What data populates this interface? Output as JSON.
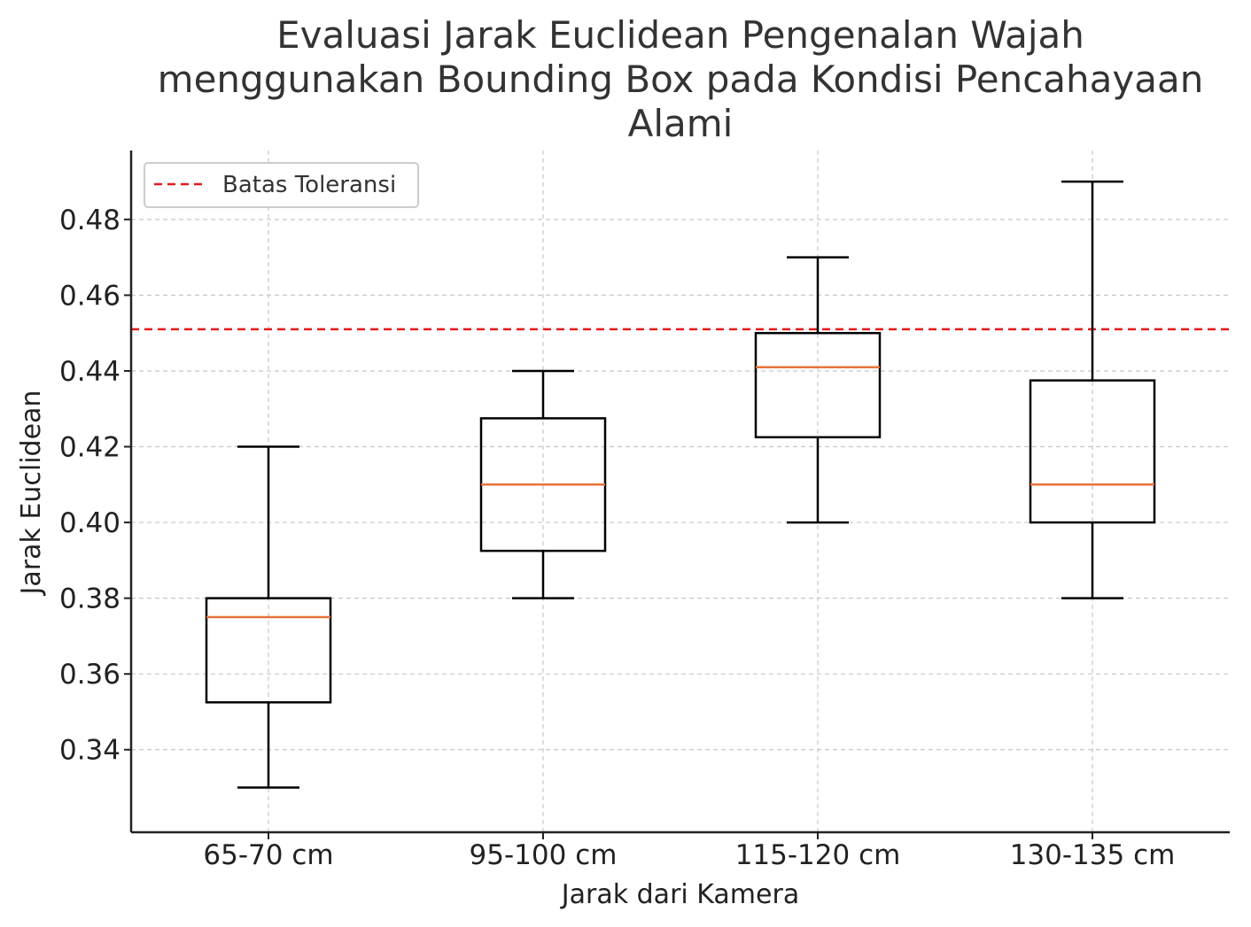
{
  "chart_data": {
    "type": "box",
    "title_lines": [
      "Evaluasi Jarak Euclidean Pengenalan Wajah",
      "menggunakan Bounding Box pada Kondisi Pencahayaan",
      "Alami"
    ],
    "xlabel": "Jarak dari Kamera",
    "ylabel": "Jarak Euclidean",
    "categories": [
      "65-70 cm",
      "95-100 cm",
      "115-120 cm",
      "130-135 cm"
    ],
    "boxes": [
      {
        "whisker_low": 0.33,
        "q1": 0.3525,
        "median": 0.375,
        "q3": 0.38,
        "whisker_high": 0.42
      },
      {
        "whisker_low": 0.38,
        "q1": 0.3925,
        "median": 0.41,
        "q3": 0.4275,
        "whisker_high": 0.44
      },
      {
        "whisker_low": 0.4,
        "q1": 0.4225,
        "median": 0.441,
        "q3": 0.45,
        "whisker_high": 0.47
      },
      {
        "whisker_low": 0.38,
        "q1": 0.4,
        "median": 0.41,
        "q3": 0.4375,
        "whisker_high": 0.49
      }
    ],
    "reference_line": {
      "label": "Batas Toleransi",
      "value": 0.451,
      "color": "#e31a1c",
      "style": "dashed"
    },
    "yticks": [
      0.34,
      0.36,
      0.38,
      0.4,
      0.42,
      0.44,
      0.46,
      0.48
    ],
    "ytick_labels": [
      "0.34",
      "0.36",
      "0.38",
      "0.40",
      "0.42",
      "0.44",
      "0.46",
      "0.48"
    ],
    "ylim": [
      0.3182,
      0.4982
    ],
    "grid": true,
    "legend_position": "top-left",
    "colors": {
      "box": "#000000",
      "median": "#e8743b",
      "grid": "#c8c8c8",
      "axis": "#222222"
    }
  }
}
